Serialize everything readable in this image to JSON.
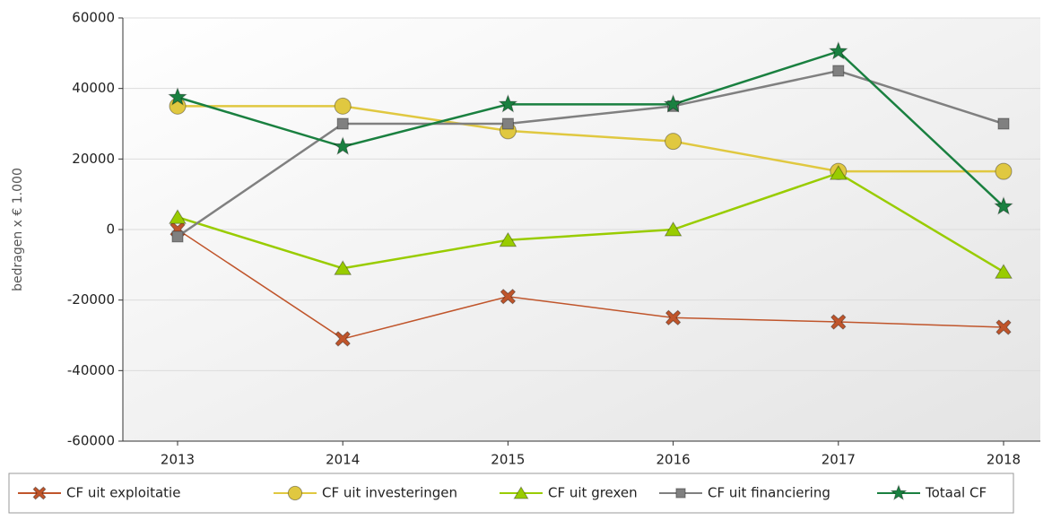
{
  "chart_data": {
    "type": "line",
    "y_label": "bedragen x € 1.000",
    "categories": [
      "2013",
      "2014",
      "2015",
      "2016",
      "2017",
      "2018"
    ],
    "ylim": [
      -60000,
      60000
    ],
    "yticks": [
      -60000,
      -40000,
      -20000,
      0,
      20000,
      40000,
      60000
    ],
    "grid": true,
    "legend": "bottom",
    "series": [
      {
        "name": "CF uit exploitatie",
        "color": "#c0552b",
        "marker": "x",
        "values": [
          0,
          -31000,
          -19000,
          -25000,
          -26200,
          -27700
        ]
      },
      {
        "name": "CF uit investeringen",
        "color": "#e0c840",
        "marker": "circle",
        "values": [
          35000,
          35000,
          28000,
          25000,
          16500,
          16500
        ]
      },
      {
        "name": "CF uit grexen",
        "color": "#99cc00",
        "marker": "triangle",
        "values": [
          3500,
          -11000,
          -3000,
          0,
          16000,
          -12000
        ]
      },
      {
        "name": "CF uit financiering",
        "color": "#808080",
        "marker": "square",
        "values": [
          -2000,
          30000,
          30000,
          35000,
          45000,
          30000
        ]
      },
      {
        "name": "Totaal CF",
        "color": "#1a8040",
        "marker": "star",
        "values": [
          37500,
          23500,
          35500,
          35500,
          50500,
          6500
        ]
      }
    ]
  }
}
